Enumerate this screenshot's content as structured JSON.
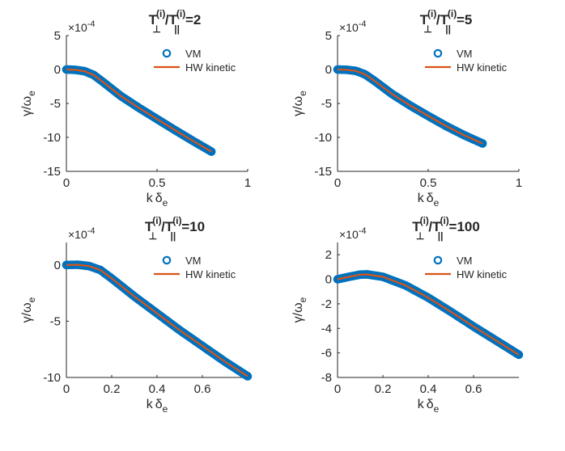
{
  "figure": {
    "series_colors": {
      "VM": "#0072BD",
      "HW kinetic": "#D95319"
    },
    "axis_color": "#262626"
  },
  "chart_data": [
    {
      "type": "line",
      "title": {
        "prefix": "T",
        "sub1": "⊥",
        "sup1": "(i)",
        "mid": "/T",
        "sub2": "||",
        "sup2": "(i)",
        "suffix": "=2"
      },
      "xlabel": {
        "main": "k",
        "greek": "δ",
        "sub": "e"
      },
      "ylabel": {
        "main": "γ/ω",
        "sub": "e"
      },
      "xlim": [
        0,
        1
      ],
      "ylim": [
        -15,
        5
      ],
      "xticks": [
        0,
        0.5,
        1
      ],
      "xtick_labels": [
        "0",
        "0.5",
        "1"
      ],
      "yticks": [
        -15,
        -10,
        -5,
        0,
        5
      ],
      "ytick_labels": [
        "-15",
        "-10",
        "-5",
        "0",
        "5"
      ],
      "y_exponent": {
        "base": "×10",
        "power": "-4"
      },
      "legend": {
        "location": "top-right",
        "entries": [
          "VM",
          "HW kinetic"
        ]
      },
      "series": [
        {
          "name": "VM",
          "marker": "circle",
          "x": [
            0,
            0.05,
            0.1,
            0.15,
            0.2,
            0.3,
            0.4,
            0.5,
            0.6,
            0.7,
            0.8
          ],
          "values": [
            0,
            -0.05,
            -0.25,
            -0.8,
            -1.8,
            -3.9,
            -5.65,
            -7.3,
            -8.95,
            -10.55,
            -12.1
          ]
        },
        {
          "name": "HW kinetic",
          "marker": "line",
          "x": [
            0,
            0.05,
            0.1,
            0.15,
            0.2,
            0.3,
            0.4,
            0.5,
            0.6,
            0.7,
            0.8
          ],
          "values": [
            0,
            -0.05,
            -0.25,
            -0.8,
            -1.8,
            -3.9,
            -5.65,
            -7.3,
            -8.95,
            -10.55,
            -12.1
          ]
        }
      ]
    },
    {
      "type": "line",
      "title": {
        "prefix": "T",
        "sub1": "⊥",
        "sup1": "(i)",
        "mid": "/T",
        "sub2": "||",
        "sup2": "(i)",
        "suffix": "=5"
      },
      "xlabel": {
        "main": "k",
        "greek": "δ",
        "sub": "e"
      },
      "ylabel": {
        "main": "γ/ω",
        "sub": "e"
      },
      "xlim": [
        0,
        1
      ],
      "ylim": [
        -15,
        5
      ],
      "xticks": [
        0,
        0.5,
        1
      ],
      "xtick_labels": [
        "0",
        "0.5",
        "1"
      ],
      "yticks": [
        -15,
        -10,
        -5,
        0,
        5
      ],
      "ytick_labels": [
        "-15",
        "-10",
        "-5",
        "0",
        "5"
      ],
      "y_exponent": {
        "base": "×10",
        "power": "-4"
      },
      "legend": {
        "location": "top-right",
        "entries": [
          "VM",
          "HW kinetic"
        ]
      },
      "series": [
        {
          "name": "VM",
          "marker": "circle",
          "x": [
            0,
            0.05,
            0.1,
            0.15,
            0.2,
            0.3,
            0.4,
            0.5,
            0.6,
            0.7,
            0.8
          ],
          "values": [
            0,
            -0.04,
            -0.2,
            -0.7,
            -1.6,
            -3.6,
            -5.3,
            -6.85,
            -8.35,
            -9.7,
            -10.9
          ]
        },
        {
          "name": "HW kinetic",
          "marker": "line",
          "x": [
            0,
            0.05,
            0.1,
            0.15,
            0.2,
            0.3,
            0.4,
            0.5,
            0.6,
            0.7,
            0.8
          ],
          "values": [
            0,
            -0.04,
            -0.2,
            -0.7,
            -1.6,
            -3.6,
            -5.3,
            -6.85,
            -8.35,
            -9.7,
            -10.9
          ]
        }
      ]
    },
    {
      "type": "line",
      "title": {
        "prefix": "T",
        "sub1": "⊥",
        "sup1": "(i)",
        "mid": "/T",
        "sub2": "||",
        "sup2": "(i)",
        "suffix": "=10"
      },
      "xlabel": {
        "main": "k",
        "greek": "δ",
        "sub": "e"
      },
      "ylabel": {
        "main": "γ/ω",
        "sub": "e"
      },
      "xlim": [
        0,
        0.8
      ],
      "ylim": [
        -10,
        2
      ],
      "xticks": [
        0,
        0.2,
        0.4,
        0.6
      ],
      "xtick_labels": [
        "0",
        "0.2",
        "0.4",
        "0.6"
      ],
      "yticks": [
        -10,
        -5,
        0
      ],
      "ytick_labels": [
        "-10",
        "-5",
        "0"
      ],
      "y_exponent": {
        "base": "×10",
        "power": "-4"
      },
      "legend": {
        "location": "top-right",
        "entries": [
          "VM",
          "HW kinetic"
        ]
      },
      "series": [
        {
          "name": "VM",
          "marker": "circle",
          "x": [
            0,
            0.05,
            0.1,
            0.15,
            0.2,
            0.3,
            0.4,
            0.5,
            0.6,
            0.7,
            0.8
          ],
          "values": [
            0,
            0.02,
            -0.1,
            -0.45,
            -1.2,
            -2.8,
            -4.3,
            -5.8,
            -7.2,
            -8.6,
            -9.9
          ]
        },
        {
          "name": "HW kinetic",
          "marker": "line",
          "x": [
            0,
            0.05,
            0.1,
            0.15,
            0.2,
            0.3,
            0.4,
            0.5,
            0.6,
            0.7,
            0.8
          ],
          "values": [
            0,
            0.02,
            -0.1,
            -0.45,
            -1.2,
            -2.8,
            -4.3,
            -5.8,
            -7.2,
            -8.6,
            -9.9
          ]
        }
      ]
    },
    {
      "type": "line",
      "title": {
        "prefix": "T",
        "sub1": "⊥",
        "sup1": "(i)",
        "mid": "/T",
        "sub2": "||",
        "sup2": "(i)",
        "suffix": "=100"
      },
      "xlabel": {
        "main": "k",
        "greek": "δ",
        "sub": "e"
      },
      "ylabel": {
        "main": "γ/ω",
        "sub": "e"
      },
      "xlim": [
        0,
        0.8
      ],
      "ylim": [
        -8,
        3
      ],
      "xticks": [
        0,
        0.2,
        0.4,
        0.6
      ],
      "xtick_labels": [
        "0",
        "0.2",
        "0.4",
        "0.6"
      ],
      "yticks": [
        -8,
        -6,
        -4,
        -2,
        0,
        2
      ],
      "ytick_labels": [
        "-8",
        "-6",
        "-4",
        "-2",
        "0",
        "2"
      ],
      "y_exponent": {
        "base": "×10",
        "power": "-4"
      },
      "legend": {
        "location": "top-right",
        "entries": [
          "VM",
          "HW kinetic"
        ]
      },
      "series": [
        {
          "name": "VM",
          "marker": "circle",
          "x": [
            0,
            0.05,
            0.1,
            0.13,
            0.2,
            0.3,
            0.4,
            0.5,
            0.6,
            0.7,
            0.8
          ],
          "values": [
            0,
            0.2,
            0.38,
            0.4,
            0.2,
            -0.5,
            -1.5,
            -2.65,
            -3.85,
            -5.0,
            -6.15
          ]
        },
        {
          "name": "HW kinetic",
          "marker": "line",
          "x": [
            0,
            0.05,
            0.1,
            0.13,
            0.2,
            0.3,
            0.4,
            0.5,
            0.6,
            0.7,
            0.8
          ],
          "values": [
            0,
            0.2,
            0.38,
            0.4,
            0.2,
            -0.5,
            -1.5,
            -2.65,
            -3.85,
            -5.0,
            -6.15
          ]
        }
      ]
    }
  ]
}
